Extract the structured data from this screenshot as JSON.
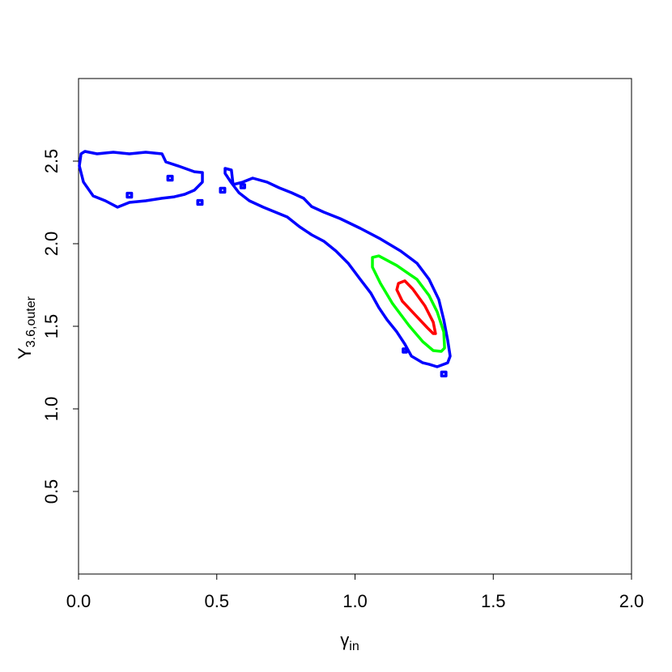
{
  "chart_data": {
    "type": "contour",
    "xlabel": "γ",
    "xlabel_subscript": "in",
    "ylabel": "Υ",
    "ylabel_subscript": "3.6,outer",
    "xlim": [
      0,
      2
    ],
    "ylim": [
      0,
      3
    ],
    "xticks": [
      {
        "value": 0,
        "label": "0.0"
      },
      0.5,
      {
        "value": 1,
        "label": "1.0"
      },
      1.5,
      {
        "value": 2,
        "label": "2.0"
      }
    ],
    "yticks": [
      0.5,
      {
        "value": 1,
        "label": "1.0"
      },
      1.5,
      {
        "value": 2,
        "label": "2.0"
      },
      2.5
    ],
    "series": [
      {
        "color": "#0000ff",
        "x": [
          0.009,
          0.023,
          0.067,
          0.126,
          0.184,
          0.243,
          0.302,
          0.316,
          0.36,
          0.419,
          0.448,
          0.448,
          0.419,
          0.384,
          0.346,
          0.302,
          0.243,
          0.184,
          0.141,
          0.097,
          0.053,
          0.018,
          0.003,
          null,
          0.53,
          0.553,
          0.559,
          0.594,
          0.63,
          0.682,
          0.726,
          0.77,
          0.814,
          0.843,
          0.887,
          0.946,
          1.019,
          1.092,
          1.165,
          1.224,
          1.268,
          1.303,
          1.321,
          1.335,
          1.344,
          1.335,
          1.297,
          1.268,
          1.245,
          1.204,
          1.18,
          1.151,
          1.116,
          1.086,
          1.057,
          1.019,
          0.975,
          0.931,
          0.887,
          0.843,
          0.799,
          0.755,
          0.712,
          0.668,
          0.618,
          0.58,
          0.551,
          0.53,
          null,
          0.431,
          0.447,
          0.447,
          0.431,
          null,
          0.513,
          0.529,
          0.529,
          0.513,
          null,
          0.323,
          0.339,
          0.339,
          0.323,
          null,
          0.176,
          0.192,
          0.192,
          0.176,
          null,
          1.174,
          1.186,
          1.186,
          1.174,
          null,
          1.313,
          1.329,
          1.329,
          1.313,
          null,
          0.587,
          0.601,
          0.601,
          0.587
        ],
        "y": [
          2.544,
          2.559,
          2.544,
          2.554,
          2.544,
          2.554,
          2.544,
          2.495,
          2.471,
          2.436,
          2.431,
          2.373,
          2.324,
          2.299,
          2.284,
          2.275,
          2.26,
          2.25,
          2.221,
          2.26,
          2.289,
          2.373,
          2.471,
          null,
          2.456,
          2.446,
          2.358,
          2.373,
          2.397,
          2.373,
          2.338,
          2.309,
          2.275,
          2.225,
          2.191,
          2.152,
          2.093,
          2.029,
          1.956,
          1.882,
          1.784,
          1.662,
          1.539,
          1.417,
          1.319,
          1.279,
          1.255,
          1.27,
          1.279,
          1.319,
          1.392,
          1.466,
          1.539,
          1.613,
          1.701,
          1.784,
          1.882,
          1.956,
          2.015,
          2.054,
          2.103,
          2.162,
          2.191,
          2.221,
          2.26,
          2.309,
          2.373,
          2.426,
          null,
          2.262,
          2.262,
          2.238,
          2.238,
          null,
          2.336,
          2.336,
          2.312,
          2.312,
          null,
          2.409,
          2.409,
          2.385,
          2.385,
          null,
          2.306,
          2.306,
          2.282,
          2.282,
          null,
          1.363,
          1.363,
          1.343,
          1.343,
          null,
          1.223,
          1.223,
          1.199,
          1.199,
          null,
          2.358,
          2.358,
          2.338,
          2.338
        ]
      },
      {
        "color": "#00ff00",
        "x": [
          1.063,
          1.086,
          1.151,
          1.224,
          1.268,
          1.297,
          1.321,
          1.324,
          1.312,
          1.283,
          1.245,
          1.195,
          1.136,
          1.092,
          1.063
        ],
        "y": [
          1.917,
          1.926,
          1.868,
          1.784,
          1.686,
          1.588,
          1.466,
          1.368,
          1.348,
          1.353,
          1.407,
          1.505,
          1.637,
          1.76,
          1.858
        ]
      },
      {
        "color": "#ff0000",
        "x": [
          1.157,
          1.18,
          1.209,
          1.253,
          1.283,
          1.291,
          1.283,
          1.262,
          1.215,
          1.171,
          1.151
        ],
        "y": [
          1.76,
          1.775,
          1.725,
          1.623,
          1.525,
          1.456,
          1.456,
          1.49,
          1.574,
          1.652,
          1.721
        ]
      }
    ]
  }
}
